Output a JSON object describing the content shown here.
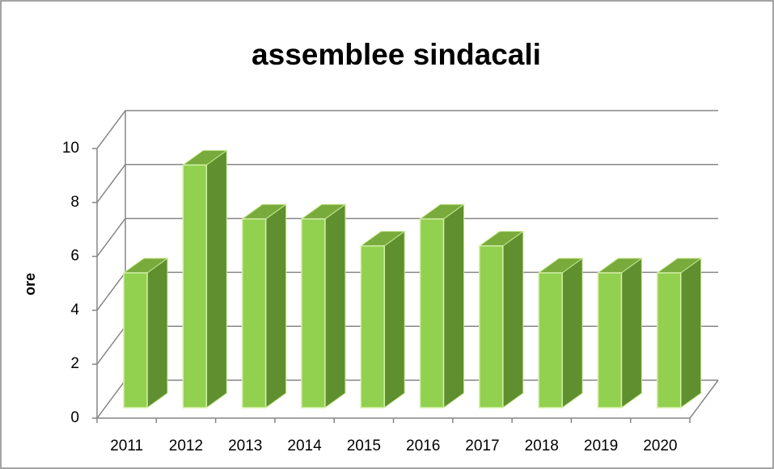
{
  "chart_data": {
    "type": "bar3d",
    "title": "assemblee sindacali",
    "y_label": "ore",
    "categories": [
      "2011",
      "2012",
      "2013",
      "2014",
      "2015",
      "2016",
      "2017",
      "2018",
      "2019",
      "2020"
    ],
    "values": [
      5,
      9,
      7,
      7,
      6,
      7,
      6,
      5,
      5,
      5
    ],
    "color": "#92d050",
    "ylim": [
      0,
      10
    ],
    "yticks": [
      0,
      2,
      4,
      6,
      8,
      10
    ],
    "grid": true
  }
}
